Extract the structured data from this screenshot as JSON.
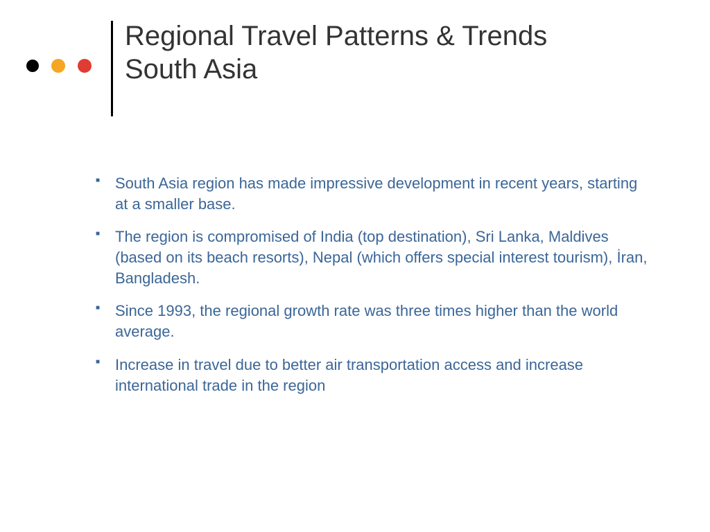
{
  "decor": {
    "dots": [
      {
        "color": "#000000",
        "size": 18
      },
      {
        "color": "#f5a623",
        "size": 20
      },
      {
        "color": "#e03c31",
        "size": 20
      }
    ],
    "divider_color": "#000000"
  },
  "title": {
    "line1": "Regional Travel Patterns & Trends",
    "line2": "South Asia",
    "color": "#333333",
    "fontsize": 40
  },
  "bullets": {
    "color": "#3b6697",
    "fontsize": 22,
    "items": [
      "South Asia region has made impressive development in recent years, starting at a smaller base.",
      "The region is compromised of India (top destination), Sri Lanka, Maldives (based on its beach resorts), Nepal (which offers special interest tourism), İran, Bangladesh.",
      "Since 1993, the regional growth rate was three times higher than the world average.",
      "Increase in travel due to better air transportation access and increase international trade in the region"
    ]
  }
}
